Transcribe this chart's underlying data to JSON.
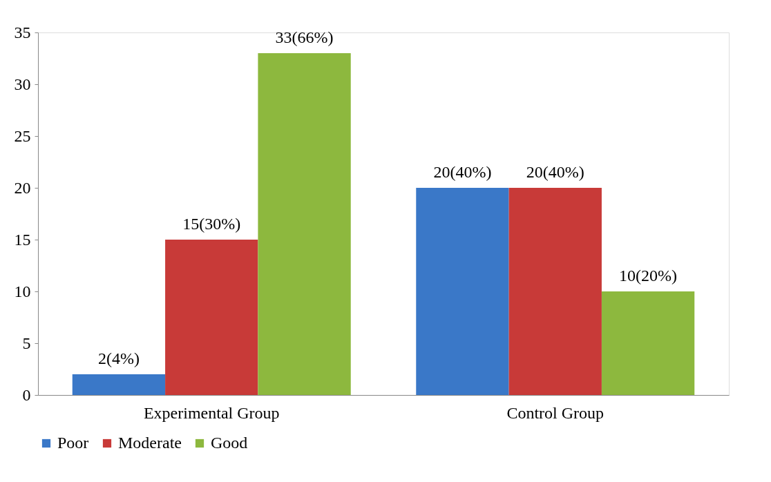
{
  "chart_data": {
    "type": "bar",
    "categories": [
      "Experimental Group",
      "Control Group"
    ],
    "series": [
      {
        "name": "Poor",
        "color": "#3a78c8",
        "values": [
          2,
          20
        ],
        "value_labels": [
          "2(4%)",
          "20(40%)"
        ]
      },
      {
        "name": "Moderate",
        "color": "#c83a38",
        "values": [
          15,
          20
        ],
        "value_labels": [
          "15(30%)",
          "20(40%)"
        ]
      },
      {
        "name": "Good",
        "color": "#8db83e",
        "values": [
          33,
          10
        ],
        "value_labels": [
          "33(66%)",
          "10(20%)"
        ]
      }
    ],
    "ylim": [
      0,
      35
    ],
    "yticks": [
      0,
      5,
      10,
      15,
      20,
      25,
      30,
      35
    ],
    "grid": false,
    "legend": "bottom"
  }
}
